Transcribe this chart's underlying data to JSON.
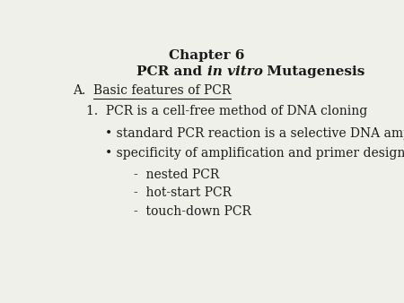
{
  "background_color": "#f0f0eb",
  "title_line1": "Chapter 6",
  "section_a_prefix": "A.  ",
  "section_a_underlined": "Basic features of PCR",
  "item1": "1.  PCR is a cell-free method of DNA cloning",
  "bullet1": "• standard PCR reaction is a selective DNA amplification",
  "bullet2": "• specificity of amplification and primer design",
  "dash1": "-  nested PCR",
  "dash2": "-  hot-start PCR",
  "dash3": "-  touch-down PCR",
  "font_family": "DejaVu Serif",
  "text_color": "#1a1a1a",
  "title_fontsize": 11,
  "body_fontsize": 10,
  "title2_part1": "PCR and ",
  "title2_part2": "in vitro",
  "title2_part3": " Mutagenesis"
}
